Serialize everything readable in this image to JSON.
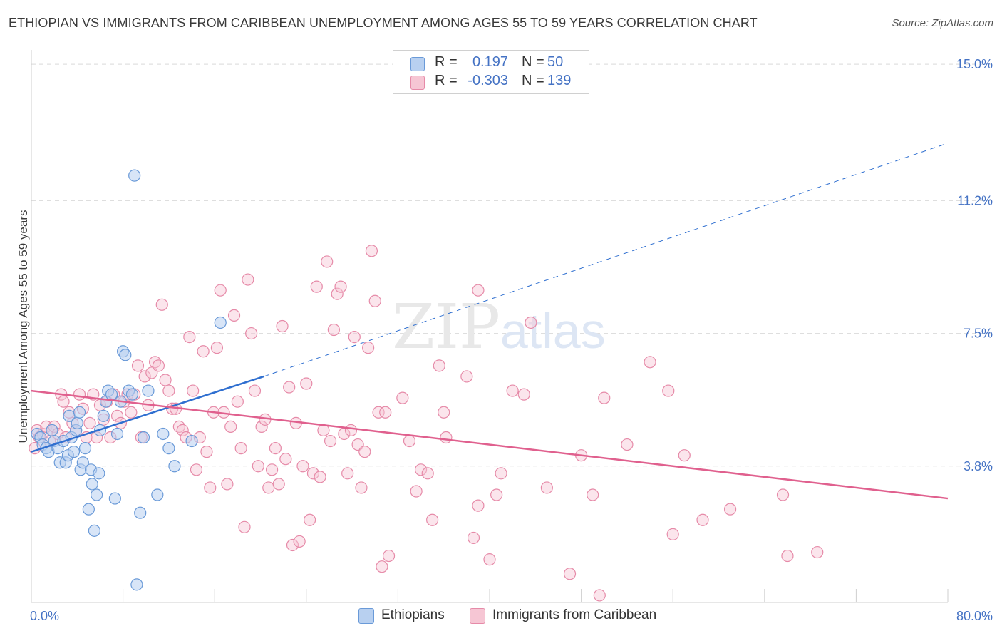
{
  "chart_data": {
    "type": "scatter",
    "title": "ETHIOPIAN VS IMMIGRANTS FROM CARIBBEAN UNEMPLOYMENT AMONG AGES 55 TO 59 YEARS CORRELATION CHART",
    "source": "Source: ZipAtlas.com",
    "watermark": "ZIPatlas",
    "xlabel": "",
    "ylabel": "Unemployment Among Ages 55 to 59 years",
    "xlim": [
      0,
      80
    ],
    "ylim": [
      0,
      15.4
    ],
    "x_tick_labels": [
      "0.0%",
      "80.0%"
    ],
    "y_ticks": [
      3.8,
      7.5,
      11.2,
      15.0
    ],
    "y_tick_labels": [
      "3.8%",
      "7.5%",
      "11.2%",
      "15.0%"
    ],
    "grid": true,
    "legend_position": "top-center",
    "legend": [
      {
        "r_label": "R =",
        "r_value": "0.197",
        "n_label": "N =",
        "n_value": "50"
      },
      {
        "r_label": "R =",
        "r_value": "-0.303",
        "n_label": "N =",
        "n_value": "139"
      }
    ],
    "colors": {
      "ethiopians_fill": "#b8d0f0",
      "ethiopians_stroke": "#6a9ad8",
      "ethiopians_line": "#2f6fd0",
      "caribbean_fill": "#f6c6d4",
      "caribbean_stroke": "#e68aa8",
      "caribbean_line": "#e0608e",
      "tick_text": "#4472c4",
      "grid": "#d9d9d9"
    },
    "series": [
      {
        "name": "Ethiopians",
        "trend": {
          "x0": 0,
          "y0": 4.2,
          "x1": 20.3,
          "y1": 6.3,
          "x_ext": 80,
          "y_ext": 12.8
        },
        "points": [
          [
            0.5,
            4.7
          ],
          [
            0.8,
            4.6
          ],
          [
            1.0,
            4.4
          ],
          [
            1.3,
            4.3
          ],
          [
            1.5,
            4.2
          ],
          [
            1.8,
            4.8
          ],
          [
            2.0,
            4.5
          ],
          [
            2.3,
            4.3
          ],
          [
            2.5,
            3.9
          ],
          [
            2.8,
            4.5
          ],
          [
            3.0,
            3.9
          ],
          [
            3.2,
            4.1
          ],
          [
            3.3,
            5.2
          ],
          [
            3.5,
            4.6
          ],
          [
            3.7,
            4.2
          ],
          [
            3.9,
            4.8
          ],
          [
            4.0,
            5.0
          ],
          [
            4.2,
            5.3
          ],
          [
            4.3,
            3.7
          ],
          [
            4.5,
            3.9
          ],
          [
            4.7,
            4.3
          ],
          [
            5.0,
            2.6
          ],
          [
            5.2,
            3.7
          ],
          [
            5.3,
            3.3
          ],
          [
            5.5,
            2.0
          ],
          [
            5.7,
            3.0
          ],
          [
            5.9,
            3.6
          ],
          [
            6.0,
            4.8
          ],
          [
            6.3,
            5.2
          ],
          [
            6.5,
            5.6
          ],
          [
            6.7,
            5.9
          ],
          [
            7.0,
            5.8
          ],
          [
            7.3,
            2.9
          ],
          [
            7.5,
            4.7
          ],
          [
            7.8,
            5.6
          ],
          [
            8.0,
            7.0
          ],
          [
            8.2,
            6.9
          ],
          [
            8.5,
            5.9
          ],
          [
            8.8,
            5.8
          ],
          [
            9.0,
            11.9
          ],
          [
            9.2,
            0.5
          ],
          [
            9.5,
            2.5
          ],
          [
            9.8,
            4.6
          ],
          [
            10.2,
            5.9
          ],
          [
            11.0,
            3.0
          ],
          [
            11.5,
            4.7
          ],
          [
            12.0,
            4.3
          ],
          [
            12.5,
            3.8
          ],
          [
            14.0,
            4.5
          ],
          [
            16.5,
            7.8
          ]
        ]
      },
      {
        "name": "Immigrants from Caribbean",
        "trend": {
          "x0": 0,
          "y0": 5.9,
          "x1": 80,
          "y1": 2.9
        },
        "points": [
          [
            0.3,
            4.3
          ],
          [
            0.5,
            4.8
          ],
          [
            0.7,
            4.6
          ],
          [
            1.0,
            4.7
          ],
          [
            1.3,
            4.9
          ],
          [
            1.6,
            4.5
          ],
          [
            1.8,
            4.8
          ],
          [
            2.0,
            4.9
          ],
          [
            2.3,
            4.7
          ],
          [
            2.6,
            5.8
          ],
          [
            2.8,
            5.6
          ],
          [
            3.0,
            4.6
          ],
          [
            3.3,
            5.3
          ],
          [
            3.6,
            5.0
          ],
          [
            3.9,
            4.8
          ],
          [
            4.2,
            5.8
          ],
          [
            4.5,
            5.4
          ],
          [
            4.8,
            4.6
          ],
          [
            5.1,
            5.0
          ],
          [
            5.4,
            5.8
          ],
          [
            5.7,
            4.6
          ],
          [
            6.0,
            5.5
          ],
          [
            6.3,
            5.1
          ],
          [
            6.6,
            5.6
          ],
          [
            6.9,
            4.6
          ],
          [
            7.2,
            5.8
          ],
          [
            7.5,
            5.2
          ],
          [
            7.8,
            5.0
          ],
          [
            8.1,
            5.6
          ],
          [
            8.4,
            5.8
          ],
          [
            8.7,
            5.3
          ],
          [
            9.0,
            5.8
          ],
          [
            9.3,
            6.6
          ],
          [
            9.6,
            4.6
          ],
          [
            9.9,
            6.3
          ],
          [
            10.2,
            5.5
          ],
          [
            10.5,
            6.4
          ],
          [
            10.8,
            6.7
          ],
          [
            11.1,
            6.6
          ],
          [
            11.4,
            8.3
          ],
          [
            11.7,
            6.2
          ],
          [
            12.0,
            5.9
          ],
          [
            12.3,
            5.4
          ],
          [
            12.6,
            5.4
          ],
          [
            12.9,
            4.9
          ],
          [
            13.2,
            4.8
          ],
          [
            13.5,
            4.6
          ],
          [
            13.8,
            7.4
          ],
          [
            14.1,
            5.9
          ],
          [
            14.4,
            3.7
          ],
          [
            14.7,
            4.6
          ],
          [
            15.0,
            7.0
          ],
          [
            15.3,
            4.2
          ],
          [
            15.6,
            3.2
          ],
          [
            15.9,
            5.3
          ],
          [
            16.2,
            7.1
          ],
          [
            16.5,
            8.7
          ],
          [
            16.8,
            5.3
          ],
          [
            17.1,
            3.3
          ],
          [
            17.4,
            4.9
          ],
          [
            17.7,
            8.0
          ],
          [
            18.0,
            5.6
          ],
          [
            18.3,
            4.3
          ],
          [
            18.6,
            2.1
          ],
          [
            18.9,
            9.0
          ],
          [
            19.2,
            7.5
          ],
          [
            19.5,
            5.9
          ],
          [
            19.8,
            3.8
          ],
          [
            20.1,
            4.9
          ],
          [
            20.4,
            5.1
          ],
          [
            20.7,
            3.2
          ],
          [
            21.0,
            3.7
          ],
          [
            21.3,
            4.3
          ],
          [
            21.6,
            3.3
          ],
          [
            21.9,
            7.7
          ],
          [
            22.2,
            4.0
          ],
          [
            22.5,
            6.0
          ],
          [
            22.8,
            1.6
          ],
          [
            23.1,
            5.0
          ],
          [
            23.4,
            1.7
          ],
          [
            23.7,
            3.8
          ],
          [
            24.0,
            6.1
          ],
          [
            24.3,
            2.3
          ],
          [
            24.6,
            3.6
          ],
          [
            24.9,
            8.8
          ],
          [
            25.2,
            3.5
          ],
          [
            25.5,
            4.8
          ],
          [
            25.8,
            9.5
          ],
          [
            26.1,
            4.5
          ],
          [
            26.4,
            7.6
          ],
          [
            26.7,
            8.6
          ],
          [
            27.0,
            8.8
          ],
          [
            27.3,
            4.7
          ],
          [
            27.6,
            3.6
          ],
          [
            27.9,
            4.8
          ],
          [
            28.2,
            7.4
          ],
          [
            28.5,
            4.4
          ],
          [
            28.8,
            3.2
          ],
          [
            29.1,
            4.2
          ],
          [
            29.4,
            7.1
          ],
          [
            29.7,
            9.8
          ],
          [
            30.0,
            8.4
          ],
          [
            30.3,
            5.3
          ],
          [
            30.6,
            1.0
          ],
          [
            30.9,
            5.3
          ],
          [
            31.2,
            1.3
          ],
          [
            32.4,
            5.7
          ],
          [
            33.0,
            4.5
          ],
          [
            33.6,
            3.1
          ],
          [
            34.0,
            3.7
          ],
          [
            34.6,
            3.6
          ],
          [
            35.0,
            2.3
          ],
          [
            35.6,
            6.6
          ],
          [
            36.0,
            5.3
          ],
          [
            36.2,
            4.6
          ],
          [
            38.0,
            6.3
          ],
          [
            38.6,
            1.8
          ],
          [
            39.0,
            8.7
          ],
          [
            39.0,
            2.7
          ],
          [
            40.0,
            1.2
          ],
          [
            40.6,
            3.0
          ],
          [
            41.0,
            3.6
          ],
          [
            42.0,
            5.9
          ],
          [
            43.0,
            5.8
          ],
          [
            43.6,
            7.8
          ],
          [
            45.0,
            3.2
          ],
          [
            47.0,
            0.8
          ],
          [
            48.0,
            4.1
          ],
          [
            49.0,
            3.0
          ],
          [
            49.6,
            0.2
          ],
          [
            50.0,
            5.7
          ],
          [
            52.0,
            4.4
          ],
          [
            54.0,
            6.7
          ],
          [
            55.6,
            5.9
          ],
          [
            56.0,
            1.9
          ],
          [
            57.0,
            4.1
          ],
          [
            58.6,
            2.3
          ],
          [
            61.0,
            2.6
          ],
          [
            65.6,
            3.0
          ],
          [
            66.0,
            1.3
          ],
          [
            68.6,
            1.4
          ]
        ]
      }
    ],
    "bottom_legend": [
      "Ethiopians",
      "Immigrants from Caribbean"
    ]
  }
}
